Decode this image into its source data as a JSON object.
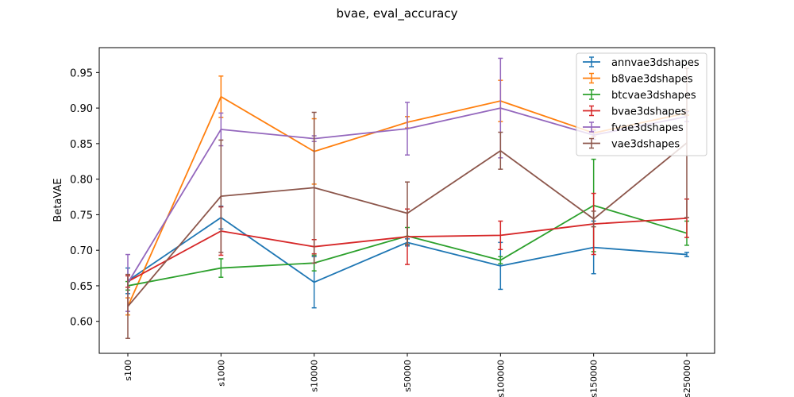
{
  "chart_data": {
    "type": "line",
    "title": "bvae, eval_accuracy",
    "xlabel": "",
    "ylabel": "BetaVAE",
    "categories": [
      "s100",
      "s1000",
      "s10000",
      "s50000",
      "s100000",
      "s150000",
      "s250000"
    ],
    "ylim": [
      0.555,
      0.985
    ],
    "yticks": [
      0.6,
      0.65,
      0.7,
      0.75,
      0.8,
      0.85,
      0.9,
      0.95
    ],
    "ytick_labels": [
      "0.60",
      "0.65",
      "0.70",
      "0.75",
      "0.80",
      "0.85",
      "0.90",
      "0.95"
    ],
    "grid": false,
    "legend_position": "top-right",
    "series": [
      {
        "name": "annvae3dshapes",
        "color": "#1f77b4",
        "values": [
          0.657,
          0.746,
          0.655,
          0.711,
          0.678,
          0.704,
          0.694
        ],
        "errors": [
          0.018,
          0.016,
          0.036,
          0.005,
          0.033,
          0.037,
          0.003
        ]
      },
      {
        "name": "b8vae3dshapes",
        "color": "#ff7f0e",
        "values": [
          0.621,
          0.916,
          0.839,
          0.88,
          0.91,
          0.865,
          0.893
        ],
        "errors": [
          0.012,
          0.029,
          0.046,
          0.008,
          0.029,
          0.005,
          0.003
        ]
      },
      {
        "name": "btcvae3dshapes",
        "color": "#2ca02c",
        "values": [
          0.65,
          0.675,
          0.682,
          0.72,
          0.686,
          0.763,
          0.724
        ],
        "errors": [
          0.006,
          0.013,
          0.011,
          0.012,
          0.005,
          0.065,
          0.017
        ]
      },
      {
        "name": "bvae3dshapes",
        "color": "#d62728",
        "values": [
          0.656,
          0.727,
          0.705,
          0.719,
          0.721,
          0.737,
          0.745
        ],
        "errors": [
          0.008,
          0.034,
          0.01,
          0.039,
          0.02,
          0.043,
          0.027
        ]
      },
      {
        "name": "fvae3dshapes",
        "color": "#9467bd",
        "values": [
          0.654,
          0.87,
          0.857,
          0.871,
          0.9,
          0.862,
          0.888
        ],
        "errors": [
          0.04,
          0.023,
          0.004,
          0.037,
          0.07,
          0.006,
          0.007
        ]
      },
      {
        "name": "vae3dshapes",
        "color": "#8c564b",
        "values": [
          0.621,
          0.776,
          0.788,
          0.752,
          0.84,
          0.744,
          0.851
        ],
        "errors": [
          0.045,
          0.079,
          0.106,
          0.044,
          0.026,
          0.011,
          0.105
        ]
      }
    ]
  }
}
